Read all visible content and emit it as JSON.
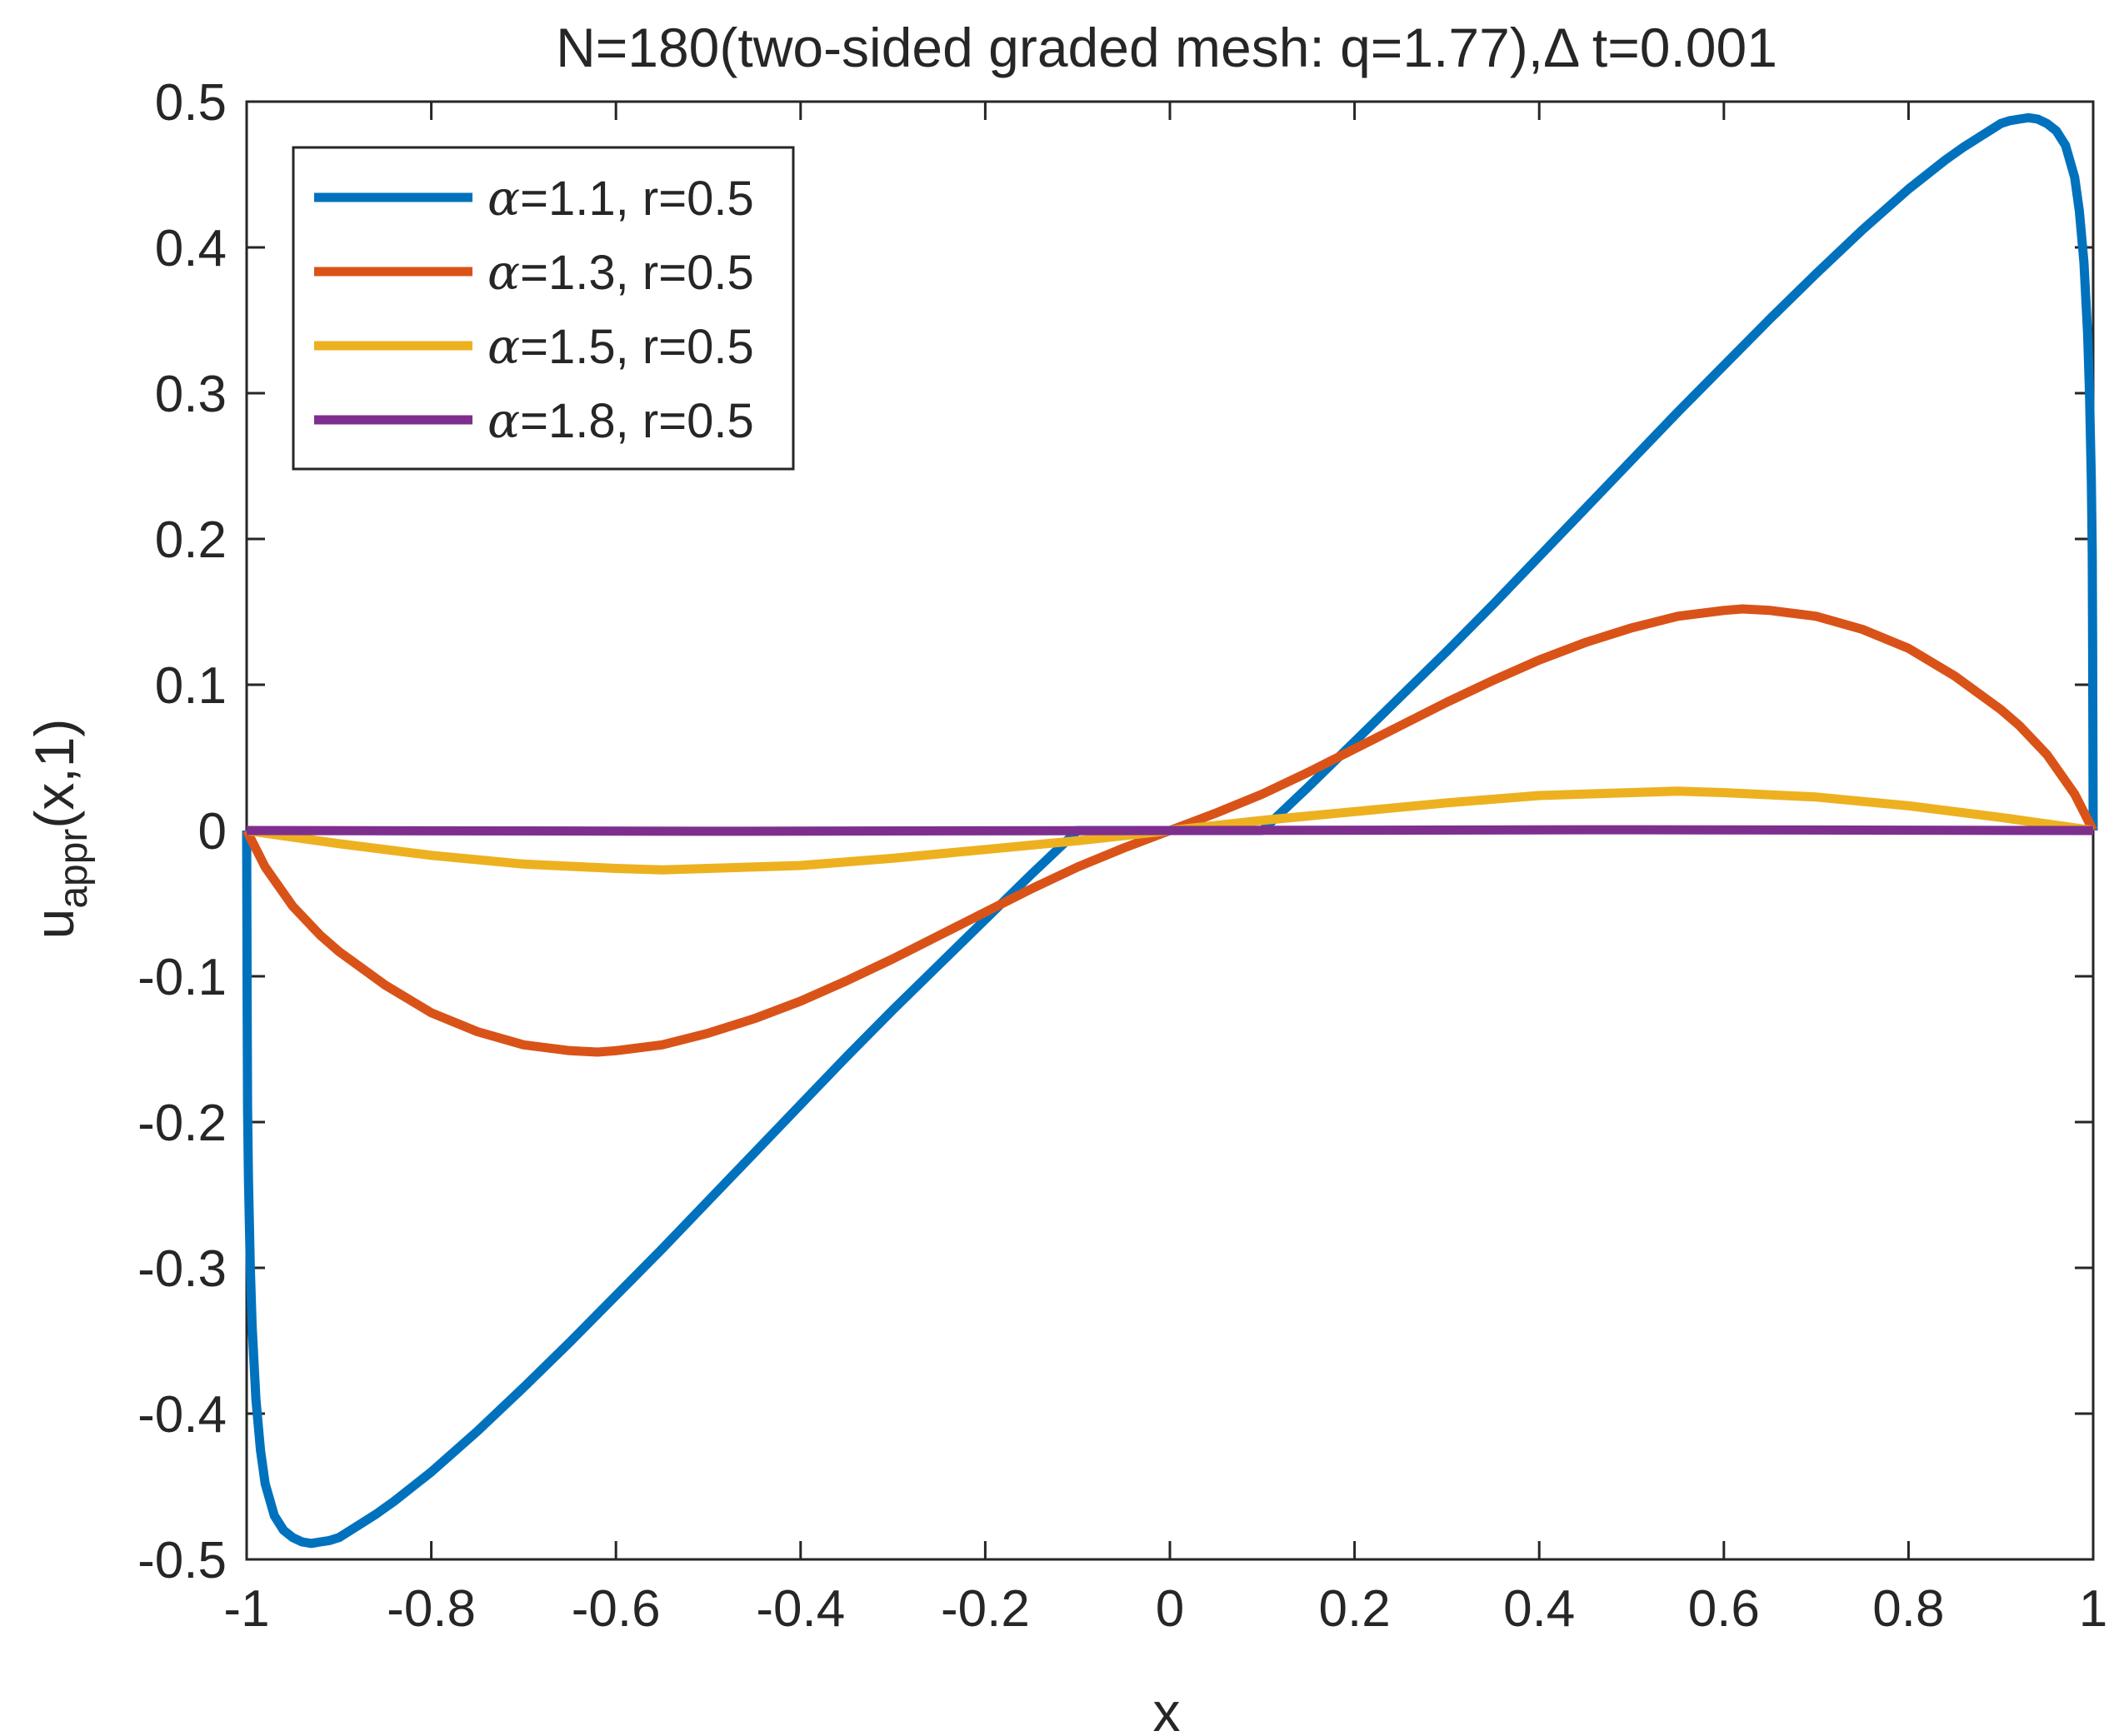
{
  "chart_data": {
    "type": "line",
    "title": "N=180(two-sided graded mesh: q=1.77),Δ t=0.001",
    "xlabel": "x",
    "ylabel_main": "u",
    "ylabel_sub": "appr",
    "ylabel_args": "(x,1)",
    "xlim": [
      -1,
      1
    ],
    "ylim": [
      -0.5,
      0.5
    ],
    "xticks": [
      -1,
      -0.8,
      -0.6,
      -0.4,
      -0.2,
      0,
      0.2,
      0.4,
      0.6,
      0.8,
      1
    ],
    "xtick_labels": [
      "-1",
      "-0.8",
      "-0.6",
      "-0.4",
      "-0.2",
      "0",
      "0.2",
      "0.4",
      "0.6",
      "0.8",
      "1"
    ],
    "yticks": [
      -0.5,
      -0.4,
      -0.3,
      -0.2,
      -0.1,
      0,
      0.1,
      0.2,
      0.3,
      0.4,
      0.5
    ],
    "ytick_labels": [
      "-0.5",
      "-0.4",
      "-0.3",
      "-0.2",
      "-0.1",
      "0",
      "0.1",
      "0.2",
      "0.3",
      "0.4",
      "0.5"
    ],
    "grid": false,
    "legend_position": "top-left",
    "series": [
      {
        "name": "α=1.1, r=0.5",
        "greek": "α",
        "rest": "=1.1, r=0.5",
        "color": "#0072BD",
        "x": [
          -1.0,
          -0.9995,
          -0.999,
          -0.998,
          -0.996,
          -0.994,
          -0.99,
          -0.985,
          -0.98,
          -0.97,
          -0.96,
          -0.95,
          -0.94,
          -0.93,
          -0.92,
          -0.91,
          -0.9,
          -0.89,
          -0.88,
          -0.86,
          -0.84,
          -0.8,
          -0.75,
          -0.7,
          -0.65,
          -0.6,
          -0.55,
          -0.5,
          -0.45,
          -0.4,
          -0.35,
          -0.3,
          -0.25,
          -0.2,
          -0.15,
          -0.1,
          -0.05,
          0.0,
          0.05,
          0.1,
          0.15,
          0.2,
          0.25,
          0.3,
          0.35,
          0.4,
          0.45,
          0.5,
          0.55,
          0.6,
          0.65,
          0.7,
          0.75,
          0.8,
          0.84,
          0.86,
          0.88,
          0.89,
          0.9,
          0.91,
          0.92,
          0.93,
          0.94,
          0.95,
          0.96,
          0.97,
          0.98,
          0.985,
          0.99,
          0.994,
          0.996,
          0.998,
          0.999,
          0.9995,
          1.0
        ],
        "y": [
          0.0,
          -0.12,
          -0.19,
          -0.24,
          -0.3,
          -0.34,
          -0.39,
          -0.425,
          -0.448,
          -0.47,
          -0.48,
          -0.485,
          -0.488,
          -0.489,
          -0.488,
          -0.487,
          -0.485,
          -0.481,
          -0.477,
          -0.469,
          -0.46,
          -0.44,
          -0.412,
          -0.382,
          -0.351,
          -0.319,
          -0.287,
          -0.254,
          -0.221,
          -0.188,
          -0.155,
          -0.123,
          -0.092,
          -0.061,
          -0.03,
          0.0,
          0.0,
          0.0,
          0.0,
          0.0,
          0.03,
          0.061,
          0.092,
          0.123,
          0.155,
          0.188,
          0.221,
          0.254,
          0.287,
          0.319,
          0.351,
          0.382,
          0.412,
          0.44,
          0.46,
          0.469,
          0.477,
          0.481,
          0.485,
          0.487,
          0.488,
          0.489,
          0.488,
          0.485,
          0.48,
          0.47,
          0.448,
          0.425,
          0.39,
          0.34,
          0.3,
          0.24,
          0.19,
          0.12,
          0.0
        ]
      },
      {
        "name": "α=1.3, r=0.5",
        "greek": "α",
        "rest": "=1.3, r=0.5",
        "color": "#D95319",
        "x": [
          -1.0,
          -0.98,
          -0.95,
          -0.92,
          -0.9,
          -0.85,
          -0.8,
          -0.75,
          -0.7,
          -0.65,
          -0.62,
          -0.6,
          -0.55,
          -0.5,
          -0.45,
          -0.4,
          -0.35,
          -0.3,
          -0.25,
          -0.2,
          -0.15,
          -0.1,
          -0.05,
          0.0,
          0.05,
          0.1,
          0.15,
          0.2,
          0.25,
          0.3,
          0.35,
          0.4,
          0.45,
          0.5,
          0.55,
          0.6,
          0.62,
          0.65,
          0.7,
          0.75,
          0.8,
          0.85,
          0.9,
          0.92,
          0.95,
          0.98,
          1.0
        ],
        "y": [
          0.0,
          -0.025,
          -0.052,
          -0.072,
          -0.083,
          -0.106,
          -0.125,
          -0.138,
          -0.147,
          -0.151,
          -0.152,
          -0.151,
          -0.147,
          -0.139,
          -0.129,
          -0.117,
          -0.103,
          -0.088,
          -0.072,
          -0.056,
          -0.04,
          -0.025,
          -0.012,
          0.0,
          0.012,
          0.025,
          0.04,
          0.056,
          0.072,
          0.088,
          0.103,
          0.117,
          0.129,
          0.139,
          0.147,
          0.151,
          0.152,
          0.151,
          0.147,
          0.138,
          0.125,
          0.106,
          0.083,
          0.072,
          0.052,
          0.025,
          0.0
        ]
      },
      {
        "name": "α=1.5, r=0.5",
        "greek": "α",
        "rest": "=1.5, r=0.5",
        "color": "#EDB120",
        "x": [
          -1.0,
          -0.9,
          -0.8,
          -0.7,
          -0.6,
          -0.55,
          -0.5,
          -0.4,
          -0.3,
          -0.2,
          -0.1,
          0.0,
          0.1,
          0.2,
          0.3,
          0.4,
          0.5,
          0.55,
          0.6,
          0.7,
          0.8,
          0.9,
          1.0
        ],
        "y": [
          0.0,
          -0.009,
          -0.017,
          -0.023,
          -0.026,
          -0.027,
          -0.026,
          -0.024,
          -0.019,
          -0.013,
          -0.007,
          0.0,
          0.007,
          0.013,
          0.019,
          0.024,
          0.026,
          0.027,
          0.026,
          0.023,
          0.017,
          0.009,
          0.0
        ]
      },
      {
        "name": "α=1.8, r=0.5",
        "greek": "α",
        "rest": "=1.8, r=0.5",
        "color": "#7E2F8E",
        "x": [
          -1.0,
          -0.5,
          0.0,
          0.5,
          1.0
        ],
        "y": [
          0.0,
          -0.0005,
          0.0,
          0.0005,
          0.0
        ]
      }
    ]
  }
}
